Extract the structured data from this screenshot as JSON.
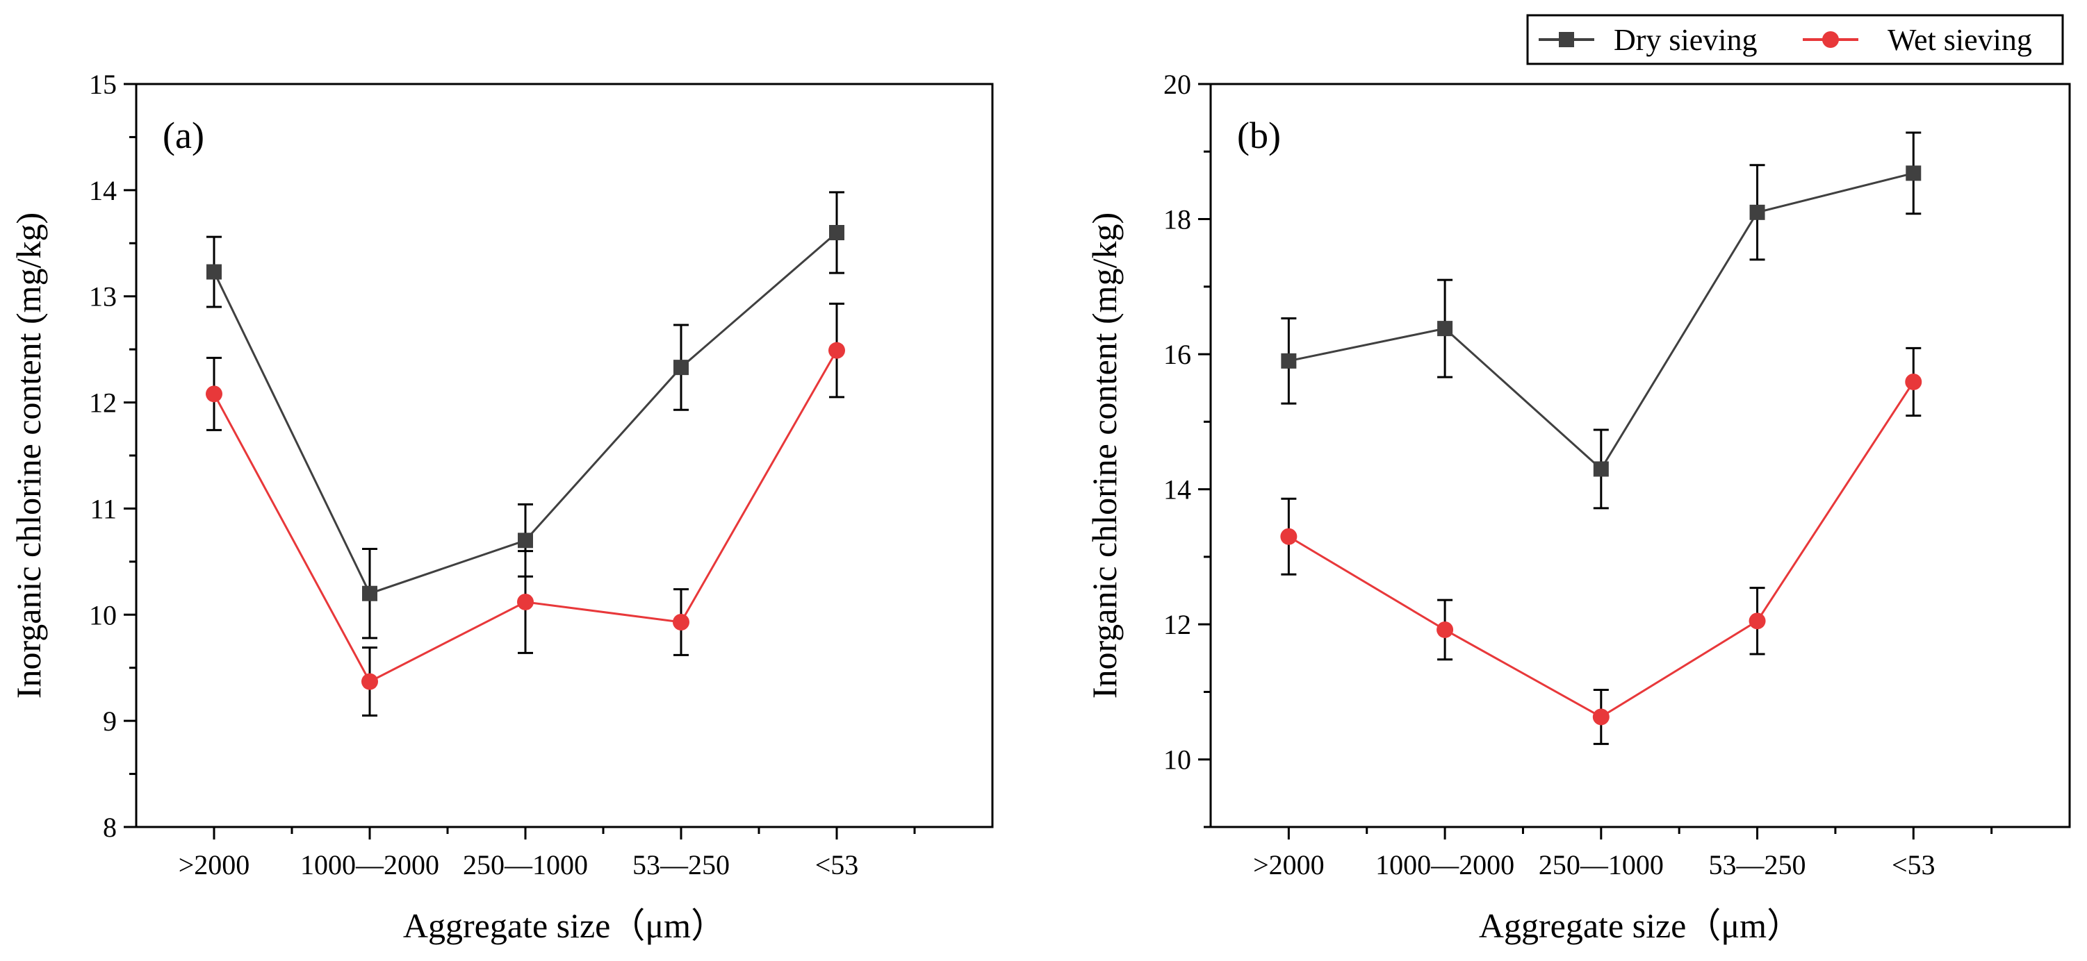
{
  "legend": {
    "items": [
      {
        "name": "Dry sieving",
        "color": "#404040",
        "marker": "square"
      },
      {
        "name": "Wet sieving",
        "color": "#e8383a",
        "marker": "circle"
      }
    ]
  },
  "chart_data": [
    {
      "type": "line",
      "panel_label": "(a)",
      "xlabel": "Aggregate size（μm）",
      "ylabel": "Inorganic chlorine content (mg/kg)",
      "categories": [
        ">2000",
        "1000—2000",
        "250—1000",
        "53—250",
        "<53"
      ],
      "ylim": [
        8,
        15
      ],
      "yticks": [
        8,
        9,
        10,
        11,
        12,
        13,
        14,
        15
      ],
      "series": [
        {
          "name": "Dry sieving",
          "color": "#404040",
          "marker": "square",
          "values": [
            13.23,
            10.2,
            10.7,
            12.33,
            13.6
          ],
          "errors": [
            0.33,
            0.42,
            0.34,
            0.4,
            0.38
          ]
        },
        {
          "name": "Wet sieving",
          "color": "#e8383a",
          "marker": "circle",
          "values": [
            12.08,
            9.37,
            10.12,
            9.93,
            12.49
          ],
          "errors": [
            0.34,
            0.32,
            0.48,
            0.31,
            0.44
          ]
        }
      ]
    },
    {
      "type": "line",
      "panel_label": "(b)",
      "xlabel": "Aggregate size（μm）",
      "ylabel": "Inorganic chlorine content (mg/kg)",
      "categories": [
        ">2000",
        "1000—2000",
        "250—1000",
        "53—250",
        "<53"
      ],
      "ylim": [
        9,
        20
      ],
      "yticks": [
        10,
        12,
        14,
        16,
        18,
        20
      ],
      "series": [
        {
          "name": "Dry sieving",
          "color": "#404040",
          "marker": "square",
          "values": [
            15.9,
            16.38,
            14.3,
            18.1,
            18.68
          ],
          "errors": [
            0.63,
            0.72,
            0.58,
            0.7,
            0.6
          ]
        },
        {
          "name": "Wet sieving",
          "color": "#e8383a",
          "marker": "circle",
          "values": [
            13.3,
            11.92,
            10.63,
            12.05,
            15.59
          ],
          "errors": [
            0.56,
            0.44,
            0.4,
            0.49,
            0.5
          ]
        }
      ]
    }
  ]
}
